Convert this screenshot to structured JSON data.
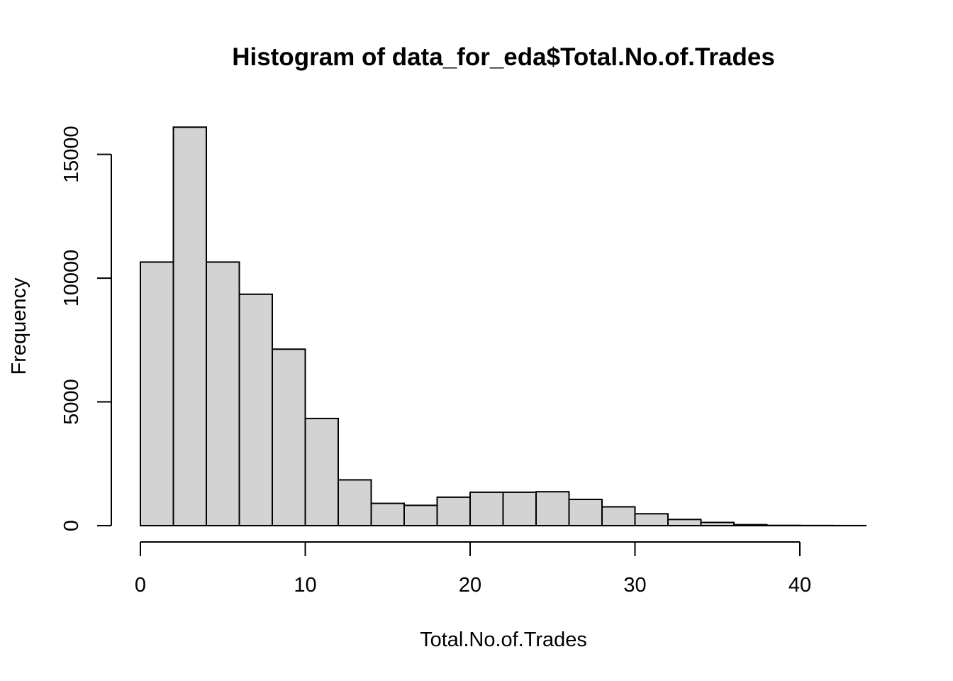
{
  "chart_data": {
    "type": "bar",
    "title": "Histogram of data_for_eda$Total.No.of.Trades",
    "xlabel": "Total.No.of.Trades",
    "ylabel": "Frequency",
    "bin_width": 2,
    "bin_edges": [
      0,
      2,
      4,
      6,
      8,
      10,
      12,
      14,
      16,
      18,
      20,
      22,
      24,
      26,
      28,
      30,
      32,
      34,
      36,
      38,
      40,
      42,
      44
    ],
    "values": [
      10650,
      16100,
      10650,
      9350,
      7130,
      4330,
      1850,
      900,
      820,
      1150,
      1350,
      1350,
      1370,
      1060,
      760,
      480,
      250,
      130,
      40,
      10,
      5,
      2
    ],
    "xlim": [
      0,
      44
    ],
    "ylim": [
      0,
      16100
    ],
    "x_ticks": [
      0,
      10,
      20,
      30,
      40
    ],
    "y_ticks": [
      0,
      5000,
      10000,
      15000
    ],
    "bar_color": "#d3d3d3",
    "edge_color": "#000000",
    "grid": false
  }
}
